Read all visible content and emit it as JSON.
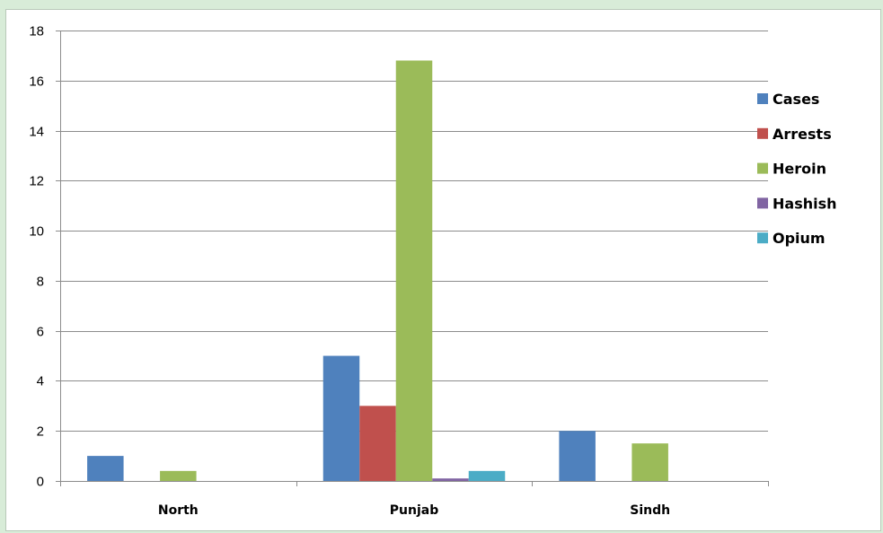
{
  "chart_data": {
    "type": "bar",
    "title": "",
    "xlabel": "",
    "ylabel": "",
    "categories": [
      "North",
      "Punjab",
      "Sindh"
    ],
    "ylim": [
      0,
      18
    ],
    "yticks": [
      0,
      2,
      4,
      6,
      8,
      10,
      12,
      14,
      16,
      18
    ],
    "grid": true,
    "legend_position": "right",
    "series": [
      {
        "name": "Cases",
        "color": "#4f81bd",
        "values": [
          1,
          5,
          2
        ]
      },
      {
        "name": "Arrests",
        "color": "#c0504d",
        "values": [
          0,
          3,
          0
        ]
      },
      {
        "name": "Heroin",
        "color": "#9bbb59",
        "values": [
          0.4,
          16.8,
          1.5
        ]
      },
      {
        "name": "Hashish",
        "color": "#8064a2",
        "values": [
          0,
          0.1,
          0
        ]
      },
      {
        "name": "Opium",
        "color": "#4bacc6",
        "values": [
          0,
          0.4,
          0
        ]
      }
    ]
  }
}
